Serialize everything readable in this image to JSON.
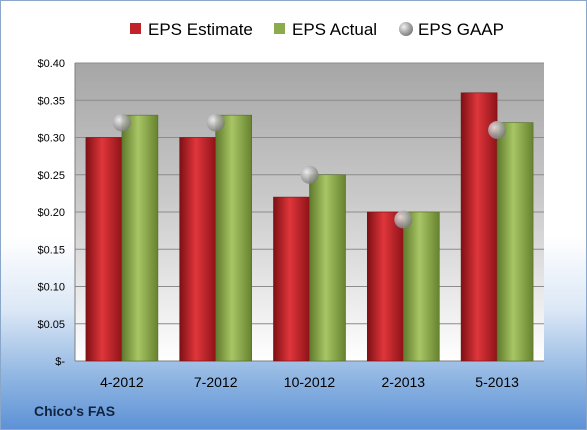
{
  "company_label": "Chico's FAS",
  "chart_data": {
    "type": "bar",
    "categories": [
      "4-2012",
      "7-2012",
      "10-2012",
      "2-2013",
      "5-2013"
    ],
    "series": [
      {
        "name": "EPS Estimate",
        "kind": "bar",
        "color": "#c0242a",
        "values": [
          0.3,
          0.3,
          0.22,
          0.2,
          0.36
        ]
      },
      {
        "name": "EPS Actual",
        "kind": "bar",
        "color": "#8cab4f",
        "values": [
          0.33,
          0.33,
          0.25,
          0.2,
          0.32
        ]
      },
      {
        "name": "EPS GAAP",
        "kind": "marker",
        "color": "#a9a9a9",
        "values": [
          0.32,
          0.32,
          0.25,
          0.19,
          0.31
        ]
      }
    ],
    "ylim": [
      0,
      0.4
    ],
    "yticks": [
      0,
      0.05,
      0.1,
      0.15,
      0.2,
      0.25,
      0.3,
      0.35,
      0.4
    ],
    "ytick_labels": [
      "$-",
      "$0.05",
      "$0.10",
      "$0.15",
      "$0.20",
      "$0.25",
      "$0.30",
      "$0.35",
      "$0.40"
    ],
    "grid": true,
    "legend_position": "top"
  }
}
